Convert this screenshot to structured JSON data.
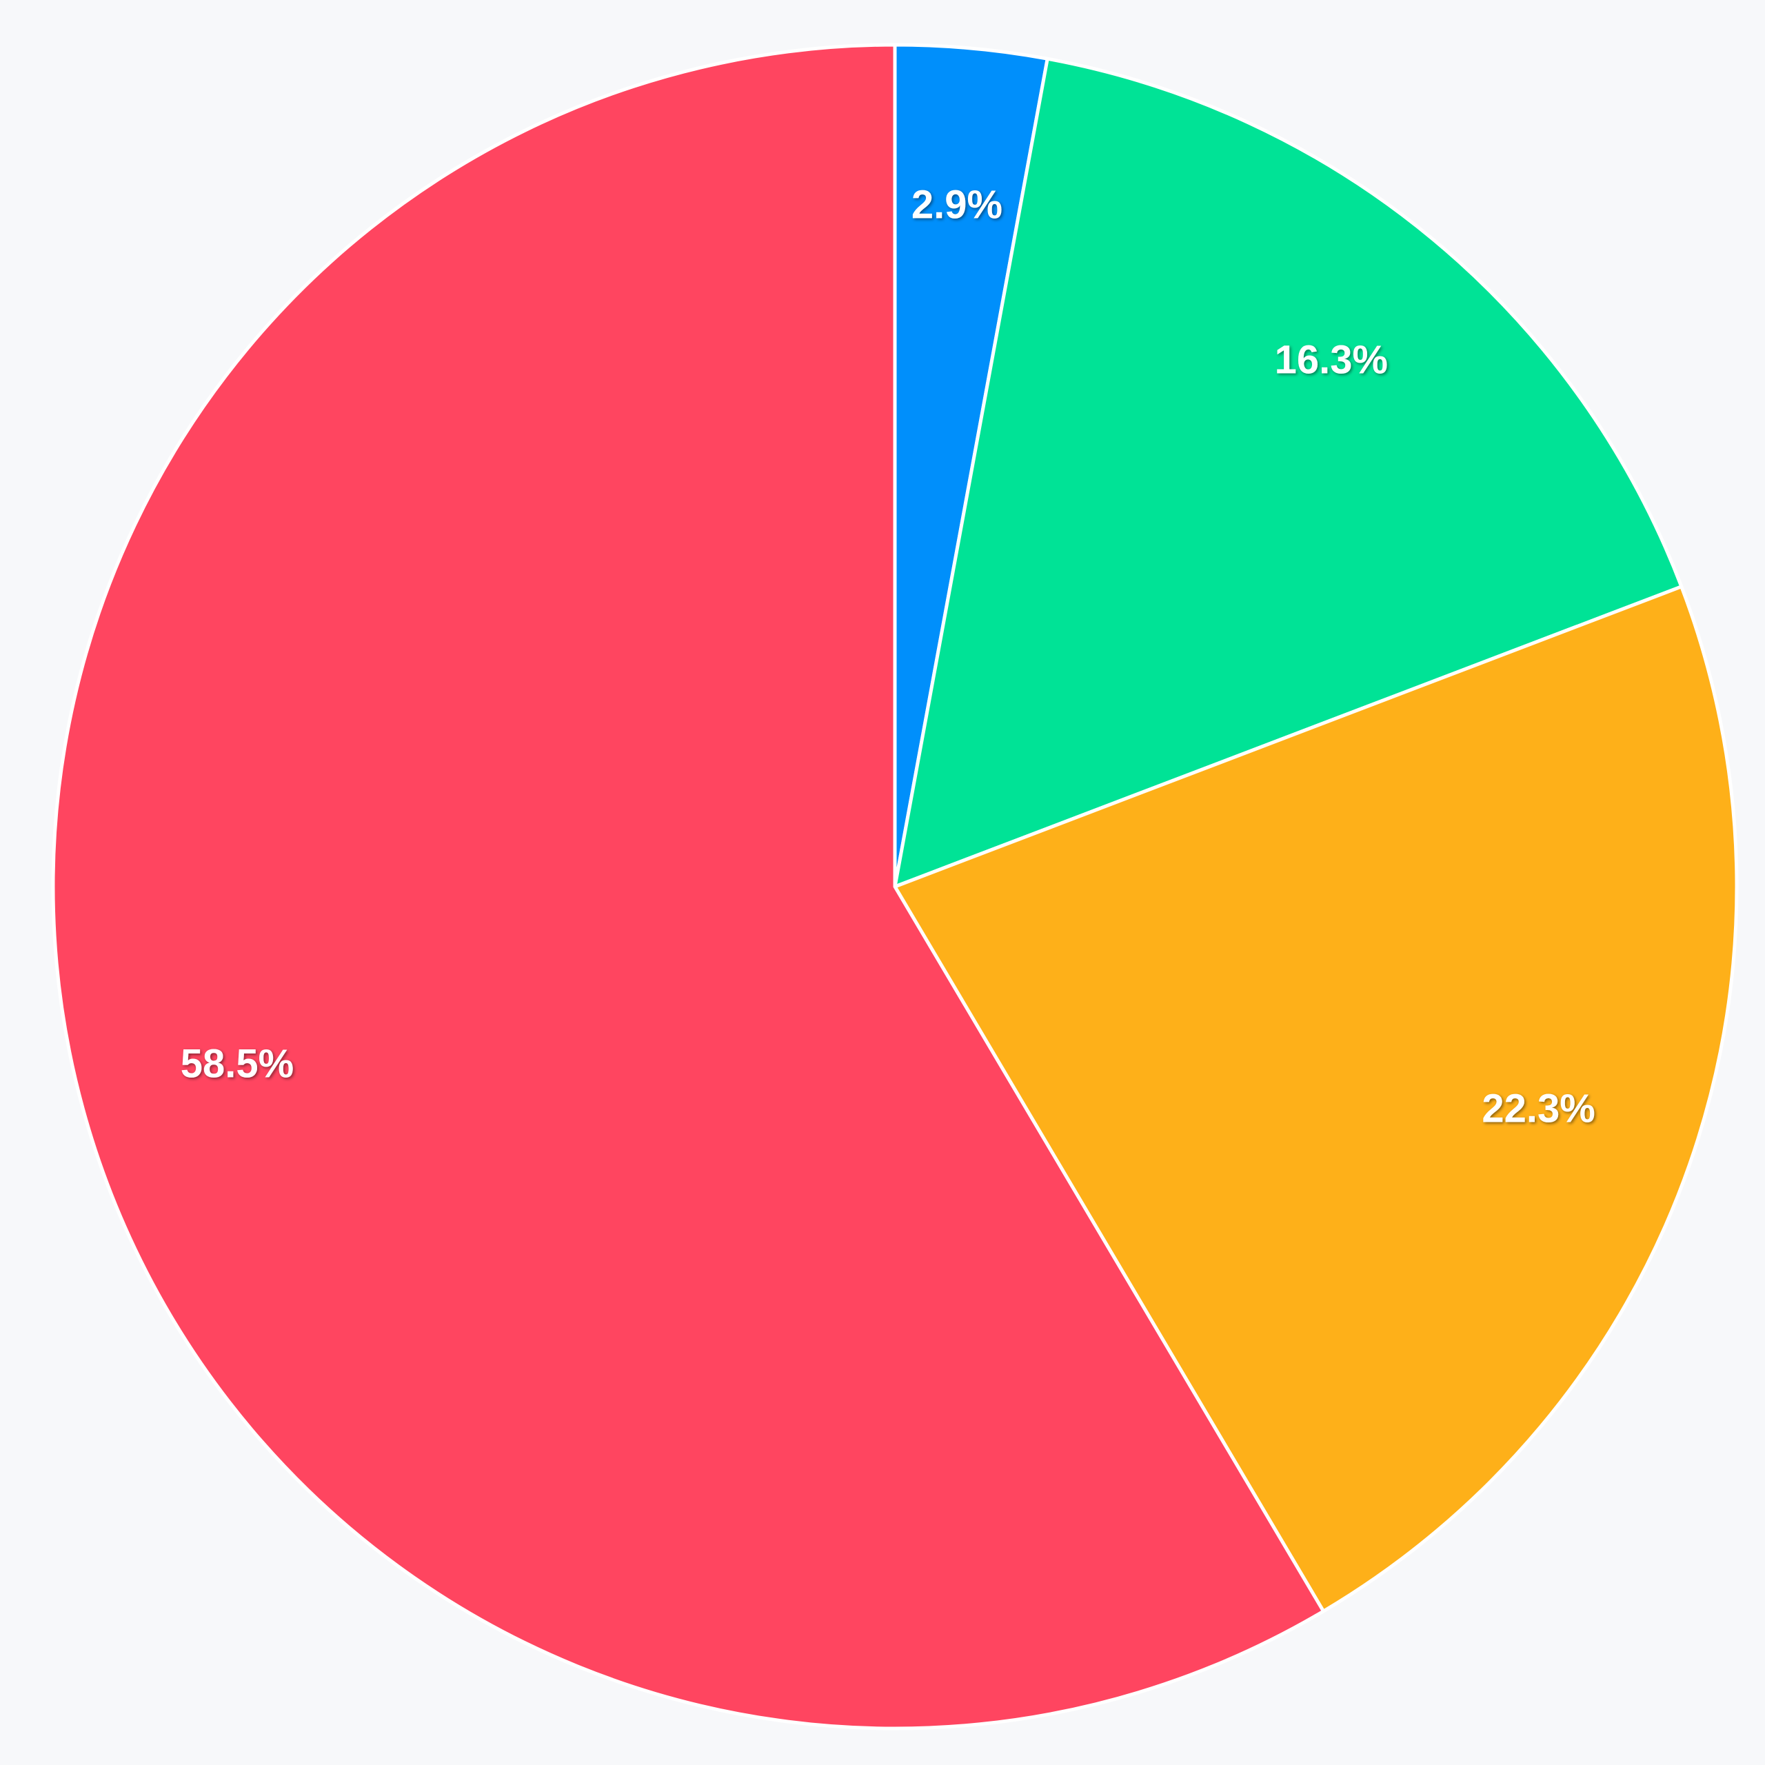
{
  "chart_data": {
    "type": "pie",
    "values": [
      2.9,
      16.3,
      22.3,
      58.5
    ],
    "value_labels": [
      "2.9%",
      "16.3%",
      "22.3%",
      "58.5%"
    ],
    "colors": [
      "#008ffb",
      "#00e396",
      "#feb019",
      "#ff4560"
    ],
    "start_angle": 0,
    "direction": "clockwise"
  }
}
